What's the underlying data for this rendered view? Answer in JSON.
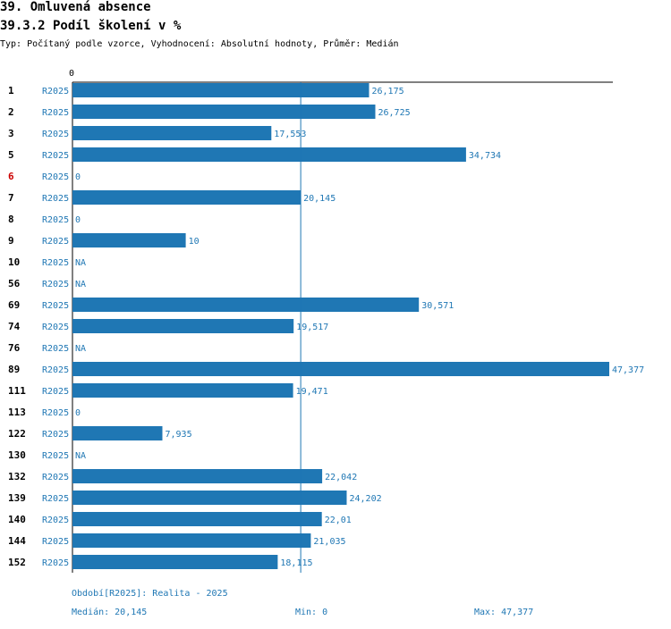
{
  "header": {
    "title": "39. Omluvená absence",
    "subtitle": "39.3.2 Podíl školení v %",
    "type_line": "Typ: Počítaný podle vzorce, Vyhodnocení: Absolutní hodnoty, Průměr: Medián"
  },
  "colors": {
    "bar": "#1f77b4",
    "label": "#1f77b4",
    "row_label": "#000000",
    "row_label_highlight": "#cc0000",
    "axis": "#000000"
  },
  "chart_data": {
    "type": "bar",
    "orientation": "horizontal",
    "title": "39.3.2 Podíl školení v %",
    "x_tick_label": "0",
    "xlim": [
      0,
      47.377
    ],
    "median_line": 20.145,
    "series_name": "R2025",
    "rows": [
      {
        "id": "1",
        "series": "R2025",
        "value": 26.175,
        "label": "26,175",
        "highlight": false
      },
      {
        "id": "2",
        "series": "R2025",
        "value": 26.725,
        "label": "26,725",
        "highlight": false
      },
      {
        "id": "3",
        "series": "R2025",
        "value": 17.553,
        "label": "17,553",
        "highlight": false
      },
      {
        "id": "5",
        "series": "R2025",
        "value": 34.734,
        "label": "34,734",
        "highlight": false
      },
      {
        "id": "6",
        "series": "R2025",
        "value": 0,
        "label": "0",
        "highlight": true
      },
      {
        "id": "7",
        "series": "R2025",
        "value": 20.145,
        "label": "20,145",
        "highlight": false
      },
      {
        "id": "8",
        "series": "R2025",
        "value": 0,
        "label": "0",
        "highlight": false
      },
      {
        "id": "9",
        "series": "R2025",
        "value": 10,
        "label": "10",
        "highlight": false
      },
      {
        "id": "10",
        "series": "R2025",
        "value": null,
        "label": "NA",
        "highlight": false
      },
      {
        "id": "56",
        "series": "R2025",
        "value": null,
        "label": "NA",
        "highlight": false
      },
      {
        "id": "69",
        "series": "R2025",
        "value": 30.571,
        "label": "30,571",
        "highlight": false
      },
      {
        "id": "74",
        "series": "R2025",
        "value": 19.517,
        "label": "19,517",
        "highlight": false
      },
      {
        "id": "76",
        "series": "R2025",
        "value": null,
        "label": "NA",
        "highlight": false
      },
      {
        "id": "89",
        "series": "R2025",
        "value": 47.377,
        "label": "47,377",
        "highlight": false
      },
      {
        "id": "111",
        "series": "R2025",
        "value": 19.471,
        "label": "19,471",
        "highlight": false
      },
      {
        "id": "113",
        "series": "R2025",
        "value": 0,
        "label": "0",
        "highlight": false
      },
      {
        "id": "122",
        "series": "R2025",
        "value": 7.935,
        "label": "7,935",
        "highlight": false
      },
      {
        "id": "130",
        "series": "R2025",
        "value": null,
        "label": "NA",
        "highlight": false
      },
      {
        "id": "132",
        "series": "R2025",
        "value": 22.042,
        "label": "22,042",
        "highlight": false
      },
      {
        "id": "139",
        "series": "R2025",
        "value": 24.202,
        "label": "24,202",
        "highlight": false
      },
      {
        "id": "140",
        "series": "R2025",
        "value": 22.01,
        "label": "22,01",
        "highlight": false
      },
      {
        "id": "144",
        "series": "R2025",
        "value": 21.035,
        "label": "21,035",
        "highlight": false
      },
      {
        "id": "152",
        "series": "R2025",
        "value": 18.115,
        "label": "18,115",
        "highlight": false
      }
    ]
  },
  "footer": {
    "period": "Období[R2025]: Realita - 2025",
    "median": "Medián: 20,145",
    "min": "Min: 0",
    "max": "Max: 47,377"
  }
}
